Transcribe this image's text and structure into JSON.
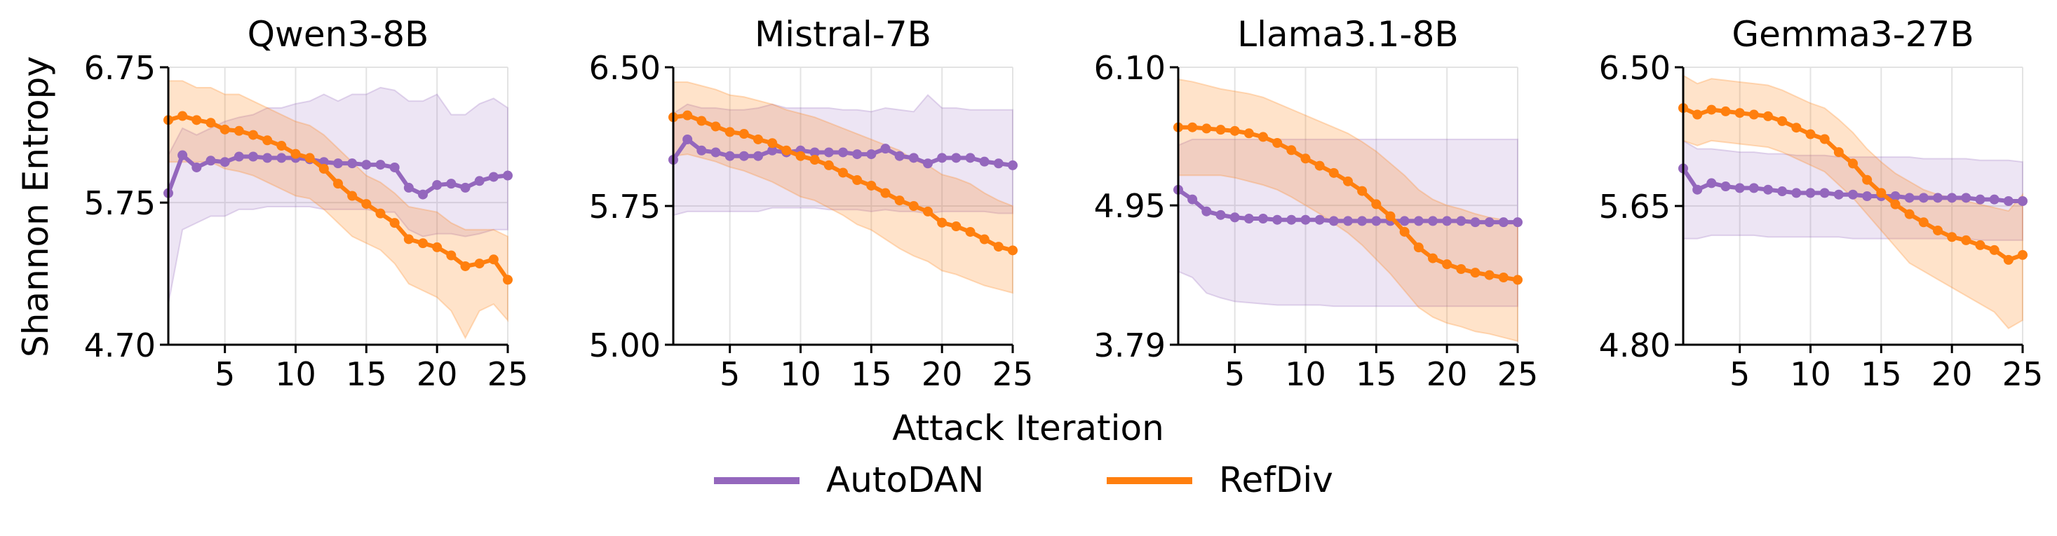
{
  "figure": {
    "ylabel": "Shannon Entropy",
    "xlabel": "Attack Iteration",
    "legend": [
      {
        "name": "AutoDAN",
        "color": "#9467bd"
      },
      {
        "name": "RefDiv",
        "color": "#ff7f0e"
      }
    ]
  },
  "chart_data": [
    {
      "type": "line",
      "title": "Qwen3-8B",
      "xlabel": "Attack Iteration",
      "ylabel": "Shannon Entropy",
      "xlim": [
        1,
        25
      ],
      "ylim": [
        4.7,
        6.75
      ],
      "yticks": [
        "4.70",
        "5.75",
        "6.75"
      ],
      "xticks": [
        5,
        10,
        15,
        20,
        25
      ],
      "grid": "vertical",
      "series": [
        {
          "name": "AutoDAN",
          "color": "#9467bd",
          "x": [
            1,
            2,
            3,
            4,
            5,
            6,
            7,
            8,
            9,
            10,
            11,
            12,
            13,
            14,
            15,
            16,
            17,
            18,
            19,
            20,
            21,
            22,
            23,
            24,
            25
          ],
          "values": [
            5.82,
            6.1,
            6.01,
            6.06,
            6.05,
            6.09,
            6.09,
            6.08,
            6.08,
            6.08,
            6.07,
            6.05,
            6.04,
            6.04,
            6.03,
            6.03,
            6.01,
            5.86,
            5.81,
            5.88,
            5.89,
            5.86,
            5.91,
            5.94,
            5.95
          ],
          "upper": [
            6.1,
            6.3,
            6.25,
            6.3,
            6.35,
            6.38,
            6.4,
            6.45,
            6.45,
            6.48,
            6.5,
            6.55,
            6.5,
            6.55,
            6.55,
            6.6,
            6.58,
            6.5,
            6.5,
            6.55,
            6.4,
            6.4,
            6.48,
            6.52,
            6.45
          ],
          "lower": [
            5.0,
            5.55,
            5.6,
            5.65,
            5.65,
            5.7,
            5.7,
            5.72,
            5.72,
            5.72,
            5.72,
            5.7,
            5.7,
            5.7,
            5.7,
            5.68,
            5.68,
            5.55,
            5.5,
            5.52,
            5.52,
            5.5,
            5.52,
            5.55,
            5.55
          ]
        },
        {
          "name": "RefDiv",
          "color": "#ff7f0e",
          "x": [
            1,
            2,
            3,
            4,
            5,
            6,
            7,
            8,
            9,
            10,
            11,
            12,
            13,
            14,
            15,
            16,
            17,
            18,
            19,
            20,
            21,
            22,
            23,
            24,
            25
          ],
          "values": [
            6.36,
            6.39,
            6.36,
            6.34,
            6.29,
            6.28,
            6.25,
            6.21,
            6.17,
            6.11,
            6.08,
            6.0,
            5.89,
            5.8,
            5.74,
            5.67,
            5.6,
            5.48,
            5.45,
            5.42,
            5.36,
            5.28,
            5.3,
            5.33,
            5.18
          ],
          "upper": [
            6.65,
            6.65,
            6.6,
            6.6,
            6.55,
            6.55,
            6.5,
            6.45,
            6.4,
            6.35,
            6.32,
            6.25,
            6.15,
            6.05,
            5.95,
            5.9,
            5.82,
            5.72,
            5.7,
            5.68,
            5.6,
            5.55,
            5.55,
            5.55,
            5.5
          ],
          "lower": [
            6.05,
            6.05,
            6.05,
            6.05,
            6.0,
            5.98,
            5.95,
            5.9,
            5.85,
            5.8,
            5.78,
            5.7,
            5.6,
            5.5,
            5.45,
            5.4,
            5.3,
            5.15,
            5.1,
            5.05,
            4.95,
            4.75,
            4.95,
            5.0,
            4.88
          ]
        }
      ]
    },
    {
      "type": "line",
      "title": "Mistral-7B",
      "xlabel": "Attack Iteration",
      "ylabel": "Shannon Entropy",
      "xlim": [
        1,
        25
      ],
      "ylim": [
        5.0,
        6.5
      ],
      "yticks": [
        "5.00",
        "5.75",
        "6.50"
      ],
      "xticks": [
        5,
        10,
        15,
        20,
        25
      ],
      "grid": "vertical",
      "series": [
        {
          "name": "AutoDAN",
          "color": "#9467bd",
          "x": [
            1,
            2,
            3,
            4,
            5,
            6,
            7,
            8,
            9,
            10,
            11,
            12,
            13,
            14,
            15,
            16,
            17,
            18,
            19,
            20,
            21,
            22,
            23,
            24,
            25
          ],
          "values": [
            6.0,
            6.11,
            6.05,
            6.04,
            6.02,
            6.02,
            6.02,
            6.05,
            6.04,
            6.05,
            6.04,
            6.04,
            6.04,
            6.03,
            6.03,
            6.06,
            6.02,
            6.01,
            5.98,
            6.01,
            6.01,
            6.01,
            5.99,
            5.98,
            5.97
          ],
          "upper": [
            6.25,
            6.3,
            6.28,
            6.28,
            6.27,
            6.27,
            6.28,
            6.3,
            6.28,
            6.28,
            6.28,
            6.28,
            6.27,
            6.27,
            6.26,
            6.28,
            6.27,
            6.26,
            6.35,
            6.28,
            6.28,
            6.27,
            6.27,
            6.27,
            6.27
          ],
          "lower": [
            5.7,
            5.72,
            5.72,
            5.72,
            5.72,
            5.72,
            5.72,
            5.74,
            5.74,
            5.74,
            5.74,
            5.73,
            5.73,
            5.73,
            5.72,
            5.73,
            5.72,
            5.72,
            5.71,
            5.72,
            5.72,
            5.72,
            5.72,
            5.71,
            5.71
          ]
        },
        {
          "name": "RefDiv",
          "color": "#ff7f0e",
          "x": [
            1,
            2,
            3,
            4,
            5,
            6,
            7,
            8,
            9,
            10,
            11,
            12,
            13,
            14,
            15,
            16,
            17,
            18,
            19,
            20,
            21,
            22,
            23,
            24,
            25
          ],
          "values": [
            6.23,
            6.24,
            6.21,
            6.18,
            6.15,
            6.14,
            6.11,
            6.09,
            6.05,
            6.02,
            6.0,
            5.97,
            5.93,
            5.89,
            5.86,
            5.82,
            5.78,
            5.75,
            5.72,
            5.66,
            5.64,
            5.61,
            5.57,
            5.53,
            5.51
          ],
          "upper": [
            6.42,
            6.42,
            6.4,
            6.38,
            6.35,
            6.34,
            6.32,
            6.3,
            6.27,
            6.25,
            6.23,
            6.2,
            6.17,
            6.14,
            6.11,
            6.08,
            6.05,
            6.0,
            5.97,
            5.92,
            5.9,
            5.87,
            5.82,
            5.78,
            5.75
          ],
          "lower": [
            6.02,
            6.03,
            6.01,
            5.99,
            5.96,
            5.94,
            5.91,
            5.88,
            5.84,
            5.8,
            5.78,
            5.74,
            5.7,
            5.65,
            5.62,
            5.57,
            5.52,
            5.48,
            5.45,
            5.4,
            5.38,
            5.35,
            5.32,
            5.3,
            5.28
          ]
        }
      ]
    },
    {
      "type": "line",
      "title": "Llama3.1-8B",
      "xlabel": "Attack Iteration",
      "ylabel": "Shannon Entropy",
      "xlim": [
        1,
        25
      ],
      "ylim": [
        3.79,
        6.1
      ],
      "yticks": [
        "3.79",
        "4.95",
        "6.10"
      ],
      "xticks": [
        5,
        10,
        15,
        20,
        25
      ],
      "grid": "vertical",
      "series": [
        {
          "name": "AutoDAN",
          "color": "#9467bd",
          "x": [
            1,
            2,
            3,
            4,
            5,
            6,
            7,
            8,
            9,
            10,
            11,
            12,
            13,
            14,
            15,
            16,
            17,
            18,
            19,
            20,
            21,
            22,
            23,
            24,
            25
          ],
          "values": [
            5.08,
            5.0,
            4.9,
            4.87,
            4.85,
            4.84,
            4.84,
            4.83,
            4.83,
            4.83,
            4.83,
            4.82,
            4.82,
            4.82,
            4.82,
            4.82,
            4.82,
            4.82,
            4.82,
            4.82,
            4.82,
            4.81,
            4.81,
            4.81,
            4.81
          ],
          "upper": [
            5.45,
            5.5,
            5.5,
            5.5,
            5.5,
            5.5,
            5.5,
            5.5,
            5.5,
            5.5,
            5.5,
            5.5,
            5.5,
            5.5,
            5.5,
            5.5,
            5.5,
            5.5,
            5.5,
            5.5,
            5.5,
            5.5,
            5.5,
            5.5,
            5.5
          ],
          "lower": [
            4.4,
            4.35,
            4.22,
            4.18,
            4.15,
            4.14,
            4.13,
            4.12,
            4.12,
            4.12,
            4.12,
            4.11,
            4.11,
            4.11,
            4.11,
            4.11,
            4.11,
            4.11,
            4.11,
            4.11,
            4.11,
            4.11,
            4.11,
            4.11,
            4.11
          ]
        },
        {
          "name": "RefDiv",
          "color": "#ff7f0e",
          "x": [
            1,
            2,
            3,
            4,
            5,
            6,
            7,
            8,
            9,
            10,
            11,
            12,
            13,
            14,
            15,
            16,
            17,
            18,
            19,
            20,
            21,
            22,
            23,
            24,
            25
          ],
          "values": [
            5.6,
            5.6,
            5.59,
            5.58,
            5.57,
            5.55,
            5.52,
            5.47,
            5.41,
            5.34,
            5.28,
            5.22,
            5.15,
            5.07,
            4.96,
            4.86,
            4.73,
            4.6,
            4.51,
            4.46,
            4.42,
            4.39,
            4.37,
            4.35,
            4.33
          ],
          "upper": [
            6.0,
            5.98,
            5.95,
            5.92,
            5.9,
            5.88,
            5.85,
            5.8,
            5.75,
            5.7,
            5.65,
            5.6,
            5.55,
            5.48,
            5.4,
            5.3,
            5.2,
            5.08,
            5.0,
            4.95,
            4.92,
            4.88,
            4.85,
            4.83,
            4.8
          ],
          "lower": [
            5.2,
            5.2,
            5.2,
            5.2,
            5.18,
            5.15,
            5.12,
            5.08,
            5.02,
            4.95,
            4.88,
            4.8,
            4.72,
            4.62,
            4.5,
            4.38,
            4.24,
            4.1,
            4.02,
            3.97,
            3.94,
            3.9,
            3.88,
            3.85,
            3.82
          ]
        }
      ]
    },
    {
      "type": "line",
      "title": "Gemma3-27B",
      "xlabel": "Attack Iteration",
      "ylabel": "Shannon Entropy",
      "xlim": [
        1,
        25
      ],
      "ylim": [
        4.8,
        6.5
      ],
      "yticks": [
        "4.80",
        "5.65",
        "6.50"
      ],
      "xticks": [
        5,
        10,
        15,
        20,
        25
      ],
      "grid": "vertical",
      "series": [
        {
          "name": "AutoDAN",
          "color": "#9467bd",
          "x": [
            1,
            2,
            3,
            4,
            5,
            6,
            7,
            8,
            9,
            10,
            11,
            12,
            13,
            14,
            15,
            16,
            17,
            18,
            19,
            20,
            21,
            22,
            23,
            24,
            25
          ],
          "values": [
            5.88,
            5.75,
            5.79,
            5.77,
            5.76,
            5.76,
            5.75,
            5.74,
            5.73,
            5.73,
            5.73,
            5.72,
            5.72,
            5.71,
            5.71,
            5.71,
            5.7,
            5.7,
            5.7,
            5.7,
            5.7,
            5.69,
            5.69,
            5.68,
            5.68
          ],
          "upper": [
            6.05,
            6.0,
            6.0,
            5.99,
            5.98,
            5.98,
            5.97,
            5.97,
            5.96,
            5.96,
            5.96,
            5.95,
            5.95,
            5.95,
            5.95,
            5.95,
            5.95,
            5.94,
            5.94,
            5.94,
            5.94,
            5.93,
            5.93,
            5.93,
            5.92
          ],
          "lower": [
            5.45,
            5.45,
            5.47,
            5.47,
            5.47,
            5.47,
            5.46,
            5.46,
            5.46,
            5.46,
            5.46,
            5.46,
            5.45,
            5.45,
            5.45,
            5.45,
            5.45,
            5.45,
            5.45,
            5.45,
            5.45,
            5.44,
            5.44,
            5.44,
            5.44
          ]
        },
        {
          "name": "RefDiv",
          "color": "#ff7f0e",
          "x": [
            1,
            2,
            3,
            4,
            5,
            6,
            7,
            8,
            9,
            10,
            11,
            12,
            13,
            14,
            15,
            16,
            17,
            18,
            19,
            20,
            21,
            22,
            23,
            24,
            25
          ],
          "values": [
            6.25,
            6.21,
            6.24,
            6.23,
            6.22,
            6.21,
            6.2,
            6.17,
            6.13,
            6.09,
            6.06,
            5.98,
            5.91,
            5.81,
            5.73,
            5.66,
            5.6,
            5.55,
            5.5,
            5.46,
            5.44,
            5.41,
            5.38,
            5.32,
            5.35
          ],
          "upper": [
            6.45,
            6.4,
            6.43,
            6.42,
            6.41,
            6.4,
            6.39,
            6.36,
            6.32,
            6.28,
            6.25,
            6.18,
            6.1,
            6.0,
            5.92,
            5.85,
            5.8,
            5.75,
            5.72,
            5.7,
            5.68,
            5.66,
            5.64,
            5.62,
            5.72
          ],
          "lower": [
            6.05,
            6.02,
            6.05,
            6.04,
            6.03,
            6.02,
            6.01,
            5.98,
            5.94,
            5.9,
            5.86,
            5.78,
            5.7,
            5.6,
            5.5,
            5.4,
            5.3,
            5.25,
            5.2,
            5.15,
            5.1,
            5.05,
            5.0,
            4.9,
            4.95
          ]
        }
      ]
    }
  ]
}
